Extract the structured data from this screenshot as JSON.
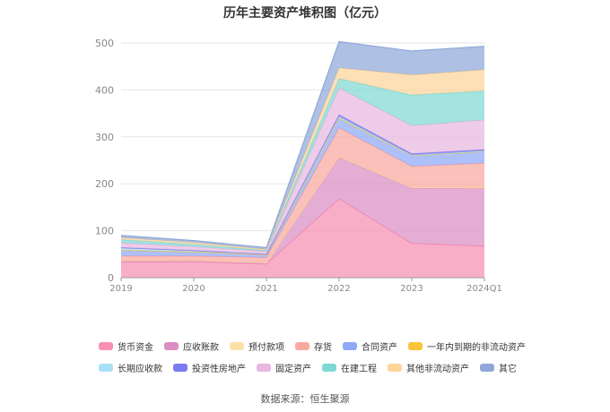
{
  "chart_data": {
    "type": "area",
    "title": "历年主要资产堆积图（亿元）",
    "categories": [
      "2019",
      "2020",
      "2021",
      "2022",
      "2023",
      "2024Q1"
    ],
    "yticks": [
      "0",
      "100",
      "200",
      "300",
      "400",
      "500"
    ],
    "ylim": [
      0,
      500
    ],
    "grid": true,
    "legend_position": "bottom",
    "series": [
      {
        "name": "货币资金",
        "color": "#f78fb3",
        "values": [
          33,
          34,
          29,
          168,
          73,
          67
        ]
      },
      {
        "name": "应收账款",
        "color": "#d98fc4",
        "values": [
          2,
          2,
          2,
          88,
          118,
          123
        ]
      },
      {
        "name": "预付款项",
        "color": "#fde0a8",
        "values": [
          2,
          1,
          1,
          2,
          1,
          2
        ]
      },
      {
        "name": "存货",
        "color": "#f9a8a0",
        "values": [
          9,
          9,
          11,
          61,
          45,
          52
        ]
      },
      {
        "name": "合同资产",
        "color": "#8fa8f7",
        "values": [
          13,
          9,
          6,
          21,
          23,
          25
        ]
      },
      {
        "name": "一年内到期的非流动资产",
        "color": "#f9c43a",
        "values": [
          0,
          0,
          0,
          0,
          0,
          0
        ]
      },
      {
        "name": "长期应收款",
        "color": "#a8e0f7",
        "values": [
          5,
          3,
          1,
          3,
          1,
          1
        ]
      },
      {
        "name": "投资性房地产",
        "color": "#7b7bf0",
        "values": [
          0,
          0,
          0,
          4,
          3,
          3
        ]
      },
      {
        "name": "固定资产",
        "color": "#e8b8e0",
        "values": [
          10,
          8,
          6,
          57,
          60,
          63
        ]
      },
      {
        "name": "在建工程",
        "color": "#7fd8d4",
        "values": [
          7,
          5,
          2,
          20,
          65,
          62
        ]
      },
      {
        "name": "其他非流动资产",
        "color": "#fdd49a",
        "values": [
          4,
          4,
          2,
          23,
          43,
          45
        ]
      },
      {
        "name": "其它",
        "color": "#8fa8d8",
        "values": [
          5,
          4,
          4,
          56,
          51,
          50
        ]
      }
    ]
  },
  "source": "数据来源：恒生聚源"
}
